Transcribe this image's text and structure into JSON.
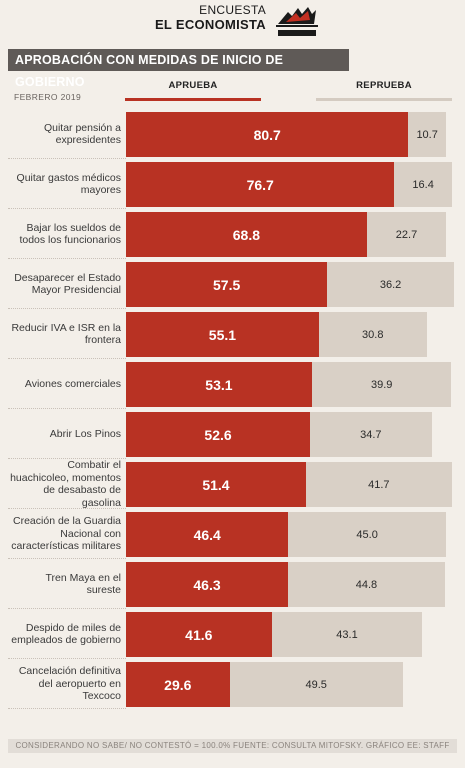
{
  "header": {
    "kicker": "ENCUESTA",
    "title": "EL ECONOMISTA",
    "logo_text": "CONSULTA MITOFSKY"
  },
  "banner": "APROBACIÓN CON MEDIDAS DE INICIO DE GOBIERNO",
  "date": "FEBRERO 2019",
  "legend": {
    "approve": "APRUEBA",
    "reject": "REPRUEBA"
  },
  "colors": {
    "approve": "#b83223",
    "reject": "#d9d0c6",
    "banner": "#5f5a57"
  },
  "footer": "CONSIDERANDO NO SABE/ NO CONTESTÓ = 100.0%  FUENTE: CONSULTA MITOFSKY.  GRÁFICO EE: STAFF",
  "chart_data": {
    "type": "bar",
    "orientation": "horizontal",
    "stacked": true,
    "title": "APROBACIÓN CON MEDIDAS DE INICIO DE GOBIERNO",
    "categories": [
      "Quitar pensión a expresidentes",
      "Quitar gastos médicos mayores",
      "Bajar los sueldos de todos los funcionarios",
      "Desaparecer el Estado Mayor Presidencial",
      "Reducir IVA e ISR en la frontera",
      "Aviones comerciales",
      "Abrir Los Pinos",
      "Combatir el huachicoleo, momentos de desabasto de gasolina",
      "Creación de la Guardia Nacional con características militares",
      "Tren Maya en el sureste",
      "Despido de miles de empleados de gobierno",
      "Cancelación definitiva del aeropuerto en Texcoco"
    ],
    "series": [
      {
        "name": "APRUEBA",
        "values": [
          80.7,
          76.7,
          68.8,
          57.5,
          55.1,
          53.1,
          52.6,
          51.4,
          46.4,
          46.3,
          41.6,
          29.6
        ]
      },
      {
        "name": "REPRUEBA",
        "values": [
          10.7,
          16.4,
          22.7,
          36.2,
          30.8,
          39.9,
          34.7,
          41.7,
          45.0,
          44.8,
          43.1,
          49.5
        ]
      }
    ],
    "value_labels": {
      "approve": [
        "80.7",
        "76.7",
        "68.8",
        "57.5",
        "55.1",
        "53.1",
        "52.6",
        "51.4",
        "46.4",
        "46.3",
        "41.6",
        "29.6"
      ],
      "reject": [
        "10.7",
        "16.4",
        "22.7",
        "36.2",
        "30.8",
        "39.9",
        "34.7",
        "41.7",
        "45.0",
        "44.8",
        "43.1",
        "49.5"
      ]
    },
    "xlim": [
      0,
      100
    ],
    "grid": false,
    "legend_position": "top"
  }
}
